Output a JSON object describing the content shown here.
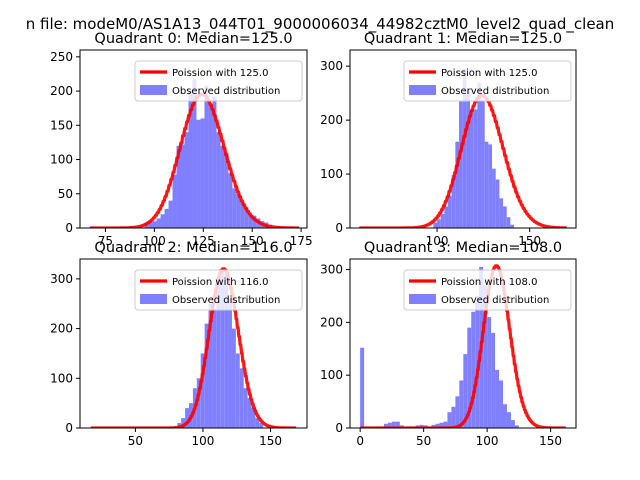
{
  "suptitle": "n file: modeM0/AS1A13_044T01_9000006034_44982cztM0_level2_quad_clean",
  "colors": {
    "poisson": "#ff0000",
    "observed": "#8080ff",
    "legend_border": "#cccccc"
  },
  "chart_data": [
    {
      "type": "bar",
      "title": "Quadrant 0: Median=125.0",
      "xlim": [
        62,
        178
      ],
      "ylim": [
        0,
        260
      ],
      "xticks": [
        75,
        100,
        125,
        150,
        175
      ],
      "yticks": [
        0,
        50,
        100,
        150,
        200,
        250
      ],
      "legend": {
        "placement": "upper-right",
        "entries": [
          "Poission with 125.0",
          "Observed distribution"
        ]
      },
      "poisson_lambda": 125.0,
      "poisson_scale": 5470,
      "poisson_xrange": [
        67,
        174
      ],
      "bins": {
        "start": 95,
        "width": 2.04,
        "counts": [
          8,
          10,
          10,
          14,
          20,
          28,
          40,
          78,
          120,
          122,
          140,
          200,
          218,
          158,
          160,
          208,
          180,
          192,
          140,
          120,
          110,
          80,
          58,
          50,
          38,
          30,
          20,
          18,
          14,
          10,
          8,
          5
        ]
      }
    },
    {
      "type": "bar",
      "title": "Quadrant 1: Median=125.0",
      "xlim": [
        53,
        175
      ],
      "ylim": [
        0,
        330
      ],
      "xticks": [
        50,
        100,
        150
      ],
      "yticks": [
        0,
        100,
        200,
        300
      ],
      "legend": {
        "placement": "upper-right",
        "entries": [
          "Poission with 125.0",
          "Observed distribution"
        ]
      },
      "poisson_lambda": 125.0,
      "poisson_scale": 6890,
      "poisson_xrange": [
        58,
        170
      ],
      "bins": {
        "start": 98,
        "width": 1.98,
        "counts": [
          10,
          16,
          26,
          40,
          60,
          98,
          160,
          235,
          295,
          255,
          220,
          220,
          270,
          235,
          160,
          155,
          110,
          90,
          55,
          40,
          20,
          6
        ]
      }
    },
    {
      "type": "bar",
      "title": "Quadrant 2: Median=116.0",
      "xlim": [
        9,
        177
      ],
      "ylim": [
        0,
        340
      ],
      "xticks": [
        50,
        100,
        150
      ],
      "yticks": [
        0,
        100,
        200,
        300
      ],
      "legend": {
        "placement": "upper-right",
        "entries": [
          "Poission with 116.0",
          "Observed distribution"
        ]
      },
      "poisson_lambda": 116.0,
      "poisson_scale": 8650,
      "poisson_xrange": [
        17,
        169
      ],
      "bins": {
        "start": 81,
        "width": 2.89,
        "counts": [
          10,
          20,
          40,
          50,
          80,
          100,
          150,
          210,
          250,
          240,
          300,
          320,
          310,
          260,
          200,
          150,
          120,
          80,
          60,
          40,
          20,
          10
        ]
      }
    },
    {
      "type": "bar",
      "title": "Quadrant 3: Median=108.0",
      "xlim": [
        -8,
        170
      ],
      "ylim": [
        0,
        320
      ],
      "xticks": [
        0,
        50,
        100,
        150
      ],
      "yticks": [
        0,
        100,
        200,
        300
      ],
      "legend": {
        "placement": "upper-right",
        "entries": [
          "Poission with 108.0",
          "Observed distribution"
        ]
      },
      "poisson_lambda": 108.0,
      "poisson_scale": 8000,
      "poisson_xrange": [
        0,
        162
      ],
      "bins": {
        "start": 0,
        "width": 3.125,
        "counts": [
          152,
          0,
          0,
          0,
          0,
          0,
          8,
          10,
          12,
          12,
          5,
          0,
          3,
          3,
          5,
          6,
          5,
          3,
          6,
          8,
          10,
          12,
          30,
          40,
          60,
          90,
          140,
          190,
          220,
          250,
          305,
          270,
          210,
          180,
          110,
          90,
          45,
          30,
          15,
          5
        ]
      }
    }
  ]
}
